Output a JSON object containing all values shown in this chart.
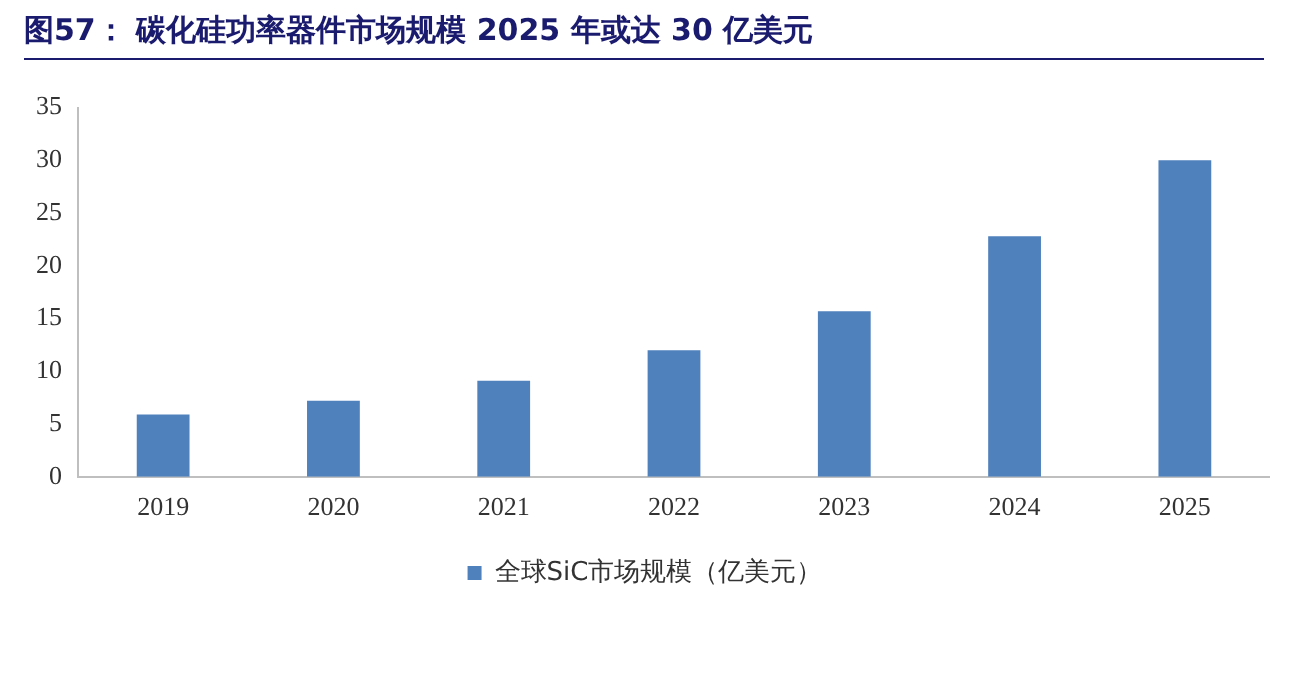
{
  "chart_data": {
    "type": "bar",
    "title": "图57：  碳化硅功率器件市场规模 2025 年或达 30 亿美元",
    "categories": [
      "2019",
      "2020",
      "2021",
      "2022",
      "2023",
      "2024",
      "2025"
    ],
    "series": [
      {
        "name": "全球SiC市场规模（亿美元）",
        "color": "#4f81bd",
        "values": [
          5.9,
          7.2,
          9.1,
          12.0,
          15.7,
          22.8,
          30.0
        ]
      }
    ],
    "ylim": [
      0,
      35
    ],
    "yticks": [
      0,
      5,
      10,
      15,
      20,
      25,
      30,
      35
    ],
    "grid": false,
    "legend": "bottom"
  }
}
